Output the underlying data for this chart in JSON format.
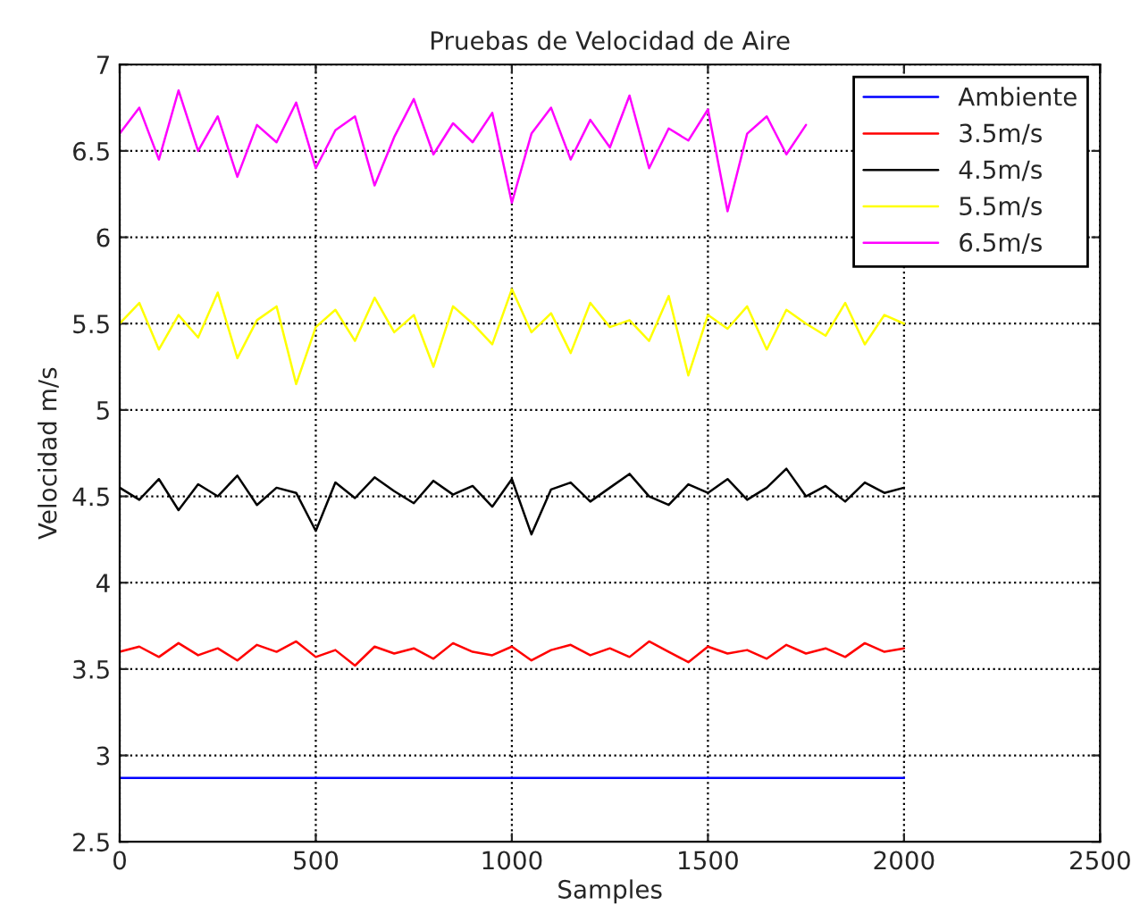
{
  "chart_data": {
    "type": "line",
    "title": "Pruebas de Velocidad de Aire",
    "xlabel": "Samples",
    "ylabel": "Velocidad m/s",
    "x": [
      0,
      50,
      100,
      150,
      200,
      250,
      300,
      350,
      400,
      450,
      500,
      550,
      600,
      650,
      700,
      750,
      800,
      850,
      900,
      950,
      1000,
      1050,
      1100,
      1150,
      1200,
      1250,
      1300,
      1350,
      1400,
      1450,
      1500,
      1550,
      1600,
      1650,
      1700,
      1750,
      1800,
      1850,
      1900,
      1950,
      2000
    ],
    "series": [
      {
        "name": "Ambiente",
        "color": "#0000ff",
        "x": [
          0,
          2000
        ],
        "values": [
          2.87,
          2.87
        ]
      },
      {
        "name": "3.5m/s",
        "color": "#ff0000",
        "values": [
          3.6,
          3.63,
          3.57,
          3.65,
          3.58,
          3.62,
          3.55,
          3.64,
          3.6,
          3.66,
          3.57,
          3.61,
          3.52,
          3.63,
          3.59,
          3.62,
          3.56,
          3.65,
          3.6,
          3.58,
          3.63,
          3.55,
          3.61,
          3.64,
          3.58,
          3.62,
          3.57,
          3.66,
          3.6,
          3.54,
          3.63,
          3.59,
          3.61,
          3.56,
          3.64,
          3.59,
          3.62,
          3.57,
          3.65,
          3.6,
          3.62
        ]
      },
      {
        "name": "4.5m/s",
        "color": "#000000",
        "values": [
          4.55,
          4.48,
          4.6,
          4.42,
          4.57,
          4.5,
          4.62,
          4.45,
          4.55,
          4.52,
          4.3,
          4.58,
          4.49,
          4.61,
          4.53,
          4.46,
          4.59,
          4.51,
          4.56,
          4.44,
          4.6,
          4.28,
          4.54,
          4.58,
          4.47,
          4.55,
          4.63,
          4.5,
          4.45,
          4.57,
          4.52,
          4.6,
          4.48,
          4.55,
          4.66,
          4.5,
          4.56,
          4.47,
          4.58,
          4.52,
          4.55
        ]
      },
      {
        "name": "5.5m/s",
        "color": "#ffff00",
        "values": [
          5.5,
          5.62,
          5.35,
          5.55,
          5.42,
          5.68,
          5.3,
          5.52,
          5.6,
          5.15,
          5.48,
          5.58,
          5.4,
          5.65,
          5.45,
          5.55,
          5.25,
          5.6,
          5.5,
          5.38,
          5.7,
          5.45,
          5.56,
          5.33,
          5.62,
          5.48,
          5.52,
          5.4,
          5.66,
          5.2,
          5.55,
          5.47,
          5.6,
          5.35,
          5.58,
          5.5,
          5.43,
          5.62,
          5.38,
          5.55,
          5.5
        ]
      },
      {
        "name": "6.5m/s",
        "color": "#ff00ff",
        "x": [
          0,
          50,
          100,
          150,
          200,
          250,
          300,
          350,
          400,
          450,
          500,
          550,
          600,
          650,
          700,
          750,
          800,
          850,
          900,
          950,
          1000,
          1050,
          1100,
          1150,
          1200,
          1250,
          1300,
          1350,
          1400,
          1450,
          1500,
          1550,
          1600,
          1650,
          1700,
          1750
        ],
        "values": [
          6.6,
          6.75,
          6.45,
          6.85,
          6.5,
          6.7,
          6.35,
          6.65,
          6.55,
          6.78,
          6.4,
          6.62,
          6.7,
          6.3,
          6.58,
          6.8,
          6.48,
          6.66,
          6.55,
          6.72,
          6.2,
          6.6,
          6.75,
          6.45,
          6.68,
          6.52,
          6.82,
          6.4,
          6.63,
          6.56,
          6.74,
          6.15,
          6.6,
          6.7,
          6.48,
          6.65
        ]
      }
    ],
    "xlim": [
      0,
      2500
    ],
    "xticks": [
      0,
      500,
      1000,
      1500,
      2000,
      2500
    ],
    "ylim": [
      2.5,
      7
    ],
    "yticks": [
      2.5,
      3,
      3.5,
      4,
      4.5,
      5,
      5.5,
      6,
      6.5,
      7
    ],
    "grid": true,
    "legend": "top right",
    "line_style": "solid",
    "marker": "none"
  }
}
